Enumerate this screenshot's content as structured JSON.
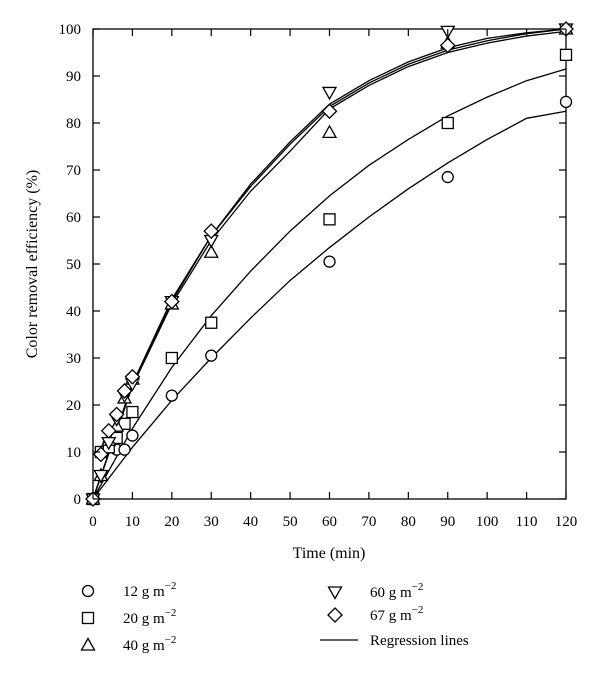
{
  "chart_data": {
    "type": "scatter",
    "title": "",
    "xlabel": "Time (min)",
    "ylabel": "Color removal efficiency (%)",
    "xlim": [
      0,
      120
    ],
    "ylim": [
      0,
      100
    ],
    "xticks": [
      0,
      10,
      20,
      30,
      40,
      50,
      60,
      70,
      80,
      90,
      100,
      110,
      120
    ],
    "yticks": [
      0,
      10,
      20,
      30,
      40,
      50,
      60,
      70,
      80,
      90,
      100
    ],
    "grid": false,
    "legend_position": "bottom",
    "series": [
      {
        "name": "12",
        "marker": "circle",
        "x": [
          0,
          6,
          8,
          10,
          20,
          30,
          60,
          90,
          120
        ],
        "y": [
          0,
          10.5,
          10.5,
          13.5,
          22,
          30.5,
          50.5,
          68.5,
          84.5
        ]
      },
      {
        "name": "20",
        "marker": "square",
        "x": [
          0,
          2,
          4,
          6,
          8,
          10,
          20,
          30,
          60,
          90,
          120
        ],
        "y": [
          0,
          10,
          11,
          13,
          16,
          18.5,
          30,
          37.5,
          59.5,
          80,
          94.5
        ]
      },
      {
        "name": "40",
        "marker": "triangle-up",
        "x": [
          0,
          2,
          4,
          6,
          8,
          10,
          20,
          30,
          60,
          90,
          120
        ],
        "y": [
          0,
          5,
          12.5,
          15.5,
          21.5,
          25.5,
          41.5,
          52.5,
          78,
          97,
          100
        ]
      },
      {
        "name": "60",
        "marker": "triangle-down",
        "x": [
          0,
          2,
          4,
          6,
          8,
          10,
          20,
          30,
          60,
          90,
          120
        ],
        "y": [
          0,
          5,
          12,
          17,
          22,
          24.5,
          42,
          55,
          86.5,
          99.5,
          100
        ]
      },
      {
        "name": "67",
        "marker": "diamond",
        "x": [
          0,
          2,
          4,
          6,
          8,
          10,
          20,
          30,
          60,
          90,
          120
        ],
        "y": [
          0,
          9.5,
          14.5,
          18,
          23,
          26,
          42,
          57,
          82.5,
          96.5,
          100
        ]
      }
    ],
    "regression_lines": [
      {
        "series": "12",
        "x": [
          0,
          10,
          20,
          30,
          40,
          50,
          60,
          70,
          80,
          90,
          100,
          110,
          120
        ],
        "y": [
          0,
          11,
          21,
          30,
          38.5,
          46.5,
          53.5,
          60,
          66,
          71.5,
          76.5,
          81,
          82.5
        ]
      },
      {
        "series": "20",
        "x": [
          0,
          10,
          20,
          30,
          40,
          50,
          60,
          70,
          80,
          90,
          100,
          110,
          120
        ],
        "y": [
          0,
          15,
          28,
          39,
          48.5,
          57,
          64.5,
          71,
          76.5,
          81.5,
          85.5,
          89,
          91.5
        ]
      },
      {
        "series": "40",
        "x": [
          0,
          10,
          20,
          30,
          40,
          50,
          60,
          70,
          80,
          90,
          100,
          110,
          120
        ],
        "y": [
          0,
          24,
          41.5,
          55,
          65.5,
          74,
          83,
          88,
          92,
          95,
          97,
          98.5,
          99.5
        ]
      },
      {
        "series": "60",
        "x": [
          0,
          10,
          20,
          30,
          40,
          50,
          60,
          70,
          80,
          90,
          100,
          110,
          120
        ],
        "y": [
          0,
          24.5,
          42.5,
          56,
          67,
          76,
          84,
          89,
          93,
          96,
          98,
          99.2,
          100
        ]
      },
      {
        "series": "67",
        "x": [
          0,
          10,
          20,
          30,
          40,
          50,
          60,
          70,
          80,
          90,
          100,
          110,
          120
        ],
        "y": [
          0,
          24.5,
          42,
          56,
          66.5,
          75.5,
          83.5,
          88.5,
          92.5,
          95.5,
          97.5,
          99,
          100
        ]
      }
    ],
    "legend": {
      "unit": "g m",
      "exponent": "−2",
      "regression_label": "Regression lines"
    }
  }
}
